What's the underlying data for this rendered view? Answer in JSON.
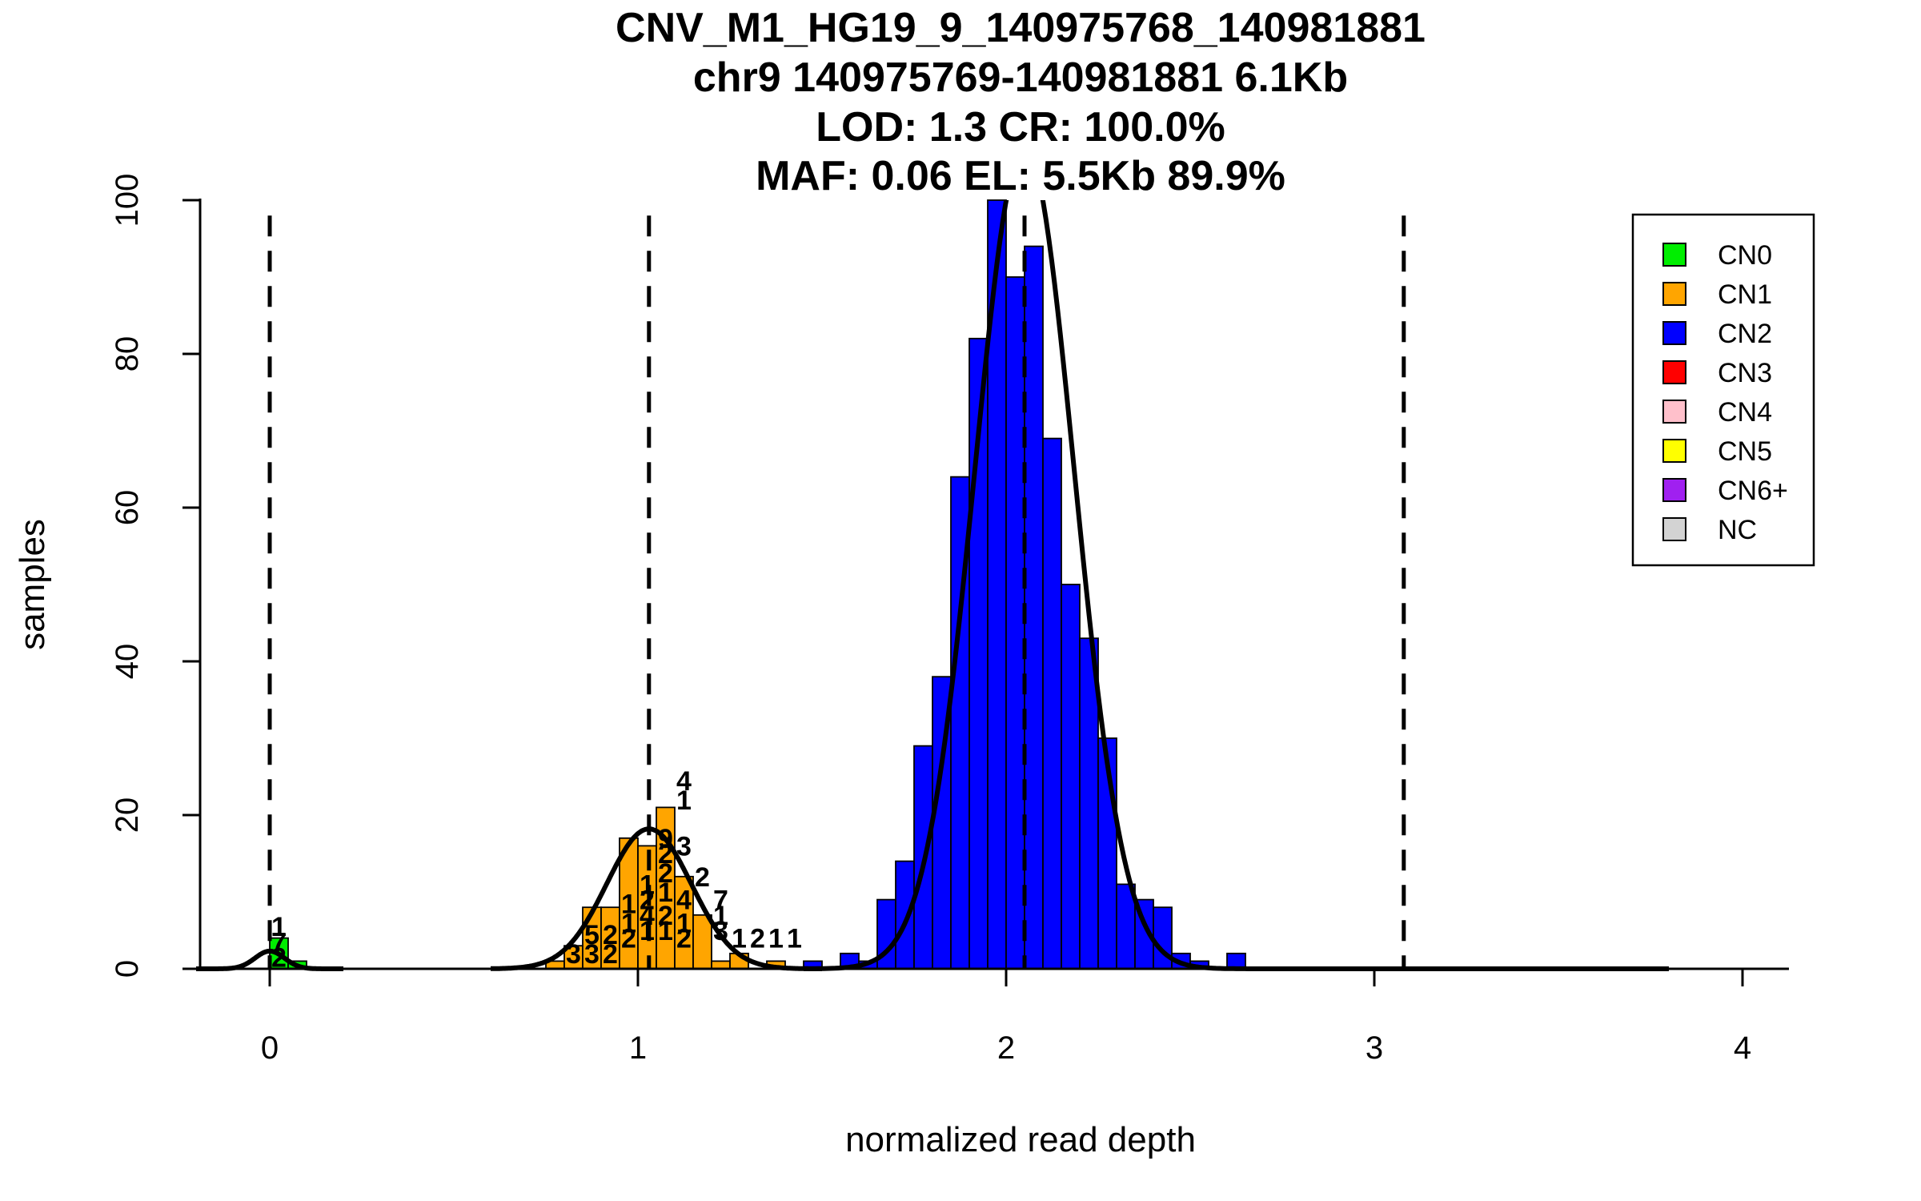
{
  "chart_data": {
    "type": "bar",
    "title_lines": [
      "CNV_M1_HG19_9_140975768_140981881",
      "chr9 140975769-140981881 6.1Kb",
      "LOD: 1.3 CR: 100.0%",
      "MAF: 0.06 EL: 5.5Kb 89.9%"
    ],
    "xlabel": "normalized read depth",
    "ylabel": "samples",
    "xlim": [
      -0.2,
      4.15
    ],
    "ylim": [
      0,
      100
    ],
    "x_ticks": [
      "0",
      "1",
      "2",
      "3",
      "4"
    ],
    "y_ticks": [
      "0",
      "20",
      "40",
      "60",
      "80",
      "100"
    ],
    "bin_width": 0.05,
    "legend": {
      "placement": "top-right",
      "entries": [
        {
          "label": "CN0",
          "color": "#00ee00"
        },
        {
          "label": "CN1",
          "color": "#ffa500"
        },
        {
          "label": "CN2",
          "color": "#0000ff"
        },
        {
          "label": "CN3",
          "color": "#ff0000"
        },
        {
          "label": "CN4",
          "color": "#ffc0cb"
        },
        {
          "label": "CN5",
          "color": "#ffff00"
        },
        {
          "label": "CN6+",
          "color": "#a020f0"
        },
        {
          "label": "NC",
          "color": "#d3d3d3"
        }
      ]
    },
    "dashed_lines_x": [
      0.0,
      1.03,
      2.05,
      3.08
    ],
    "series": [
      {
        "name": "CN0",
        "color": "#00ee00",
        "bars": [
          {
            "x": 0.05,
            "y": 4
          },
          {
            "x": 0.1,
            "y": 1
          }
        ]
      },
      {
        "name": "CN1",
        "color": "#ffa500",
        "bars": [
          {
            "x": 0.8,
            "y": 1
          },
          {
            "x": 0.85,
            "y": 3
          },
          {
            "x": 0.9,
            "y": 8
          },
          {
            "x": 0.95,
            "y": 8
          },
          {
            "x": 1.0,
            "y": 17
          },
          {
            "x": 1.05,
            "y": 16
          },
          {
            "x": 1.1,
            "y": 21
          },
          {
            "x": 1.15,
            "y": 12
          },
          {
            "x": 1.2,
            "y": 7
          },
          {
            "x": 1.25,
            "y": 1
          },
          {
            "x": 1.3,
            "y": 2
          },
          {
            "x": 1.4,
            "y": 1
          }
        ]
      },
      {
        "name": "CN2",
        "color": "#0000ff",
        "bars": [
          {
            "x": 1.5,
            "y": 1
          },
          {
            "x": 1.6,
            "y": 2
          },
          {
            "x": 1.65,
            "y": 1
          },
          {
            "x": 1.7,
            "y": 9
          },
          {
            "x": 1.75,
            "y": 14
          },
          {
            "x": 1.8,
            "y": 29
          },
          {
            "x": 1.85,
            "y": 38
          },
          {
            "x": 1.9,
            "y": 64
          },
          {
            "x": 1.95,
            "y": 82
          },
          {
            "x": 2.0,
            "y": 100
          },
          {
            "x": 2.05,
            "y": 90
          },
          {
            "x": 2.1,
            "y": 94
          },
          {
            "x": 2.15,
            "y": 69
          },
          {
            "x": 2.2,
            "y": 50
          },
          {
            "x": 2.25,
            "y": 43
          },
          {
            "x": 2.3,
            "y": 30
          },
          {
            "x": 2.35,
            "y": 11
          },
          {
            "x": 2.4,
            "y": 9
          },
          {
            "x": 2.45,
            "y": 8
          },
          {
            "x": 2.5,
            "y": 2
          },
          {
            "x": 2.55,
            "y": 1
          },
          {
            "x": 2.65,
            "y": 2
          }
        ]
      }
    ],
    "bar_labels": [
      {
        "x": 0.025,
        "y": 1.5,
        "text": "2"
      },
      {
        "x": 0.025,
        "y": 3.5,
        "text": "7"
      },
      {
        "x": 0.025,
        "y": 5.5,
        "text": "1"
      },
      {
        "x": 0.825,
        "y": 2,
        "text": "3"
      },
      {
        "x": 0.875,
        "y": 2,
        "text": "3"
      },
      {
        "x": 0.875,
        "y": 4.5,
        "text": "5"
      },
      {
        "x": 0.925,
        "y": 4.5,
        "text": "2"
      },
      {
        "x": 0.925,
        "y": 2,
        "text": "2"
      },
      {
        "x": 0.975,
        "y": 6,
        "text": "1"
      },
      {
        "x": 0.975,
        "y": 8.5,
        "text": "1"
      },
      {
        "x": 0.975,
        "y": 4,
        "text": "2"
      },
      {
        "x": 1.025,
        "y": 11,
        "text": "1"
      },
      {
        "x": 1.025,
        "y": 9,
        "text": "2"
      },
      {
        "x": 1.025,
        "y": 7,
        "text": "4"
      },
      {
        "x": 1.025,
        "y": 5,
        "text": "1"
      },
      {
        "x": 1.075,
        "y": 17,
        "text": "9"
      },
      {
        "x": 1.075,
        "y": 15,
        "text": "2"
      },
      {
        "x": 1.075,
        "y": 12.5,
        "text": "2"
      },
      {
        "x": 1.075,
        "y": 10,
        "text": "1"
      },
      {
        "x": 1.075,
        "y": 7,
        "text": "2"
      },
      {
        "x": 1.075,
        "y": 5,
        "text": "1"
      },
      {
        "x": 1.125,
        "y": 24.5,
        "text": "4"
      },
      {
        "x": 1.125,
        "y": 22,
        "text": "1"
      },
      {
        "x": 1.125,
        "y": 16,
        "text": "3"
      },
      {
        "x": 1.125,
        "y": 9,
        "text": "4"
      },
      {
        "x": 1.125,
        "y": 6,
        "text": "1"
      },
      {
        "x": 1.125,
        "y": 4,
        "text": "2"
      },
      {
        "x": 1.175,
        "y": 12,
        "text": "2"
      },
      {
        "x": 1.225,
        "y": 9,
        "text": "7"
      },
      {
        "x": 1.225,
        "y": 7,
        "text": "1"
      },
      {
        "x": 1.225,
        "y": 5,
        "text": "3"
      },
      {
        "x": 1.275,
        "y": 4,
        "text": "1"
      },
      {
        "x": 1.325,
        "y": 4,
        "text": "2"
      },
      {
        "x": 1.375,
        "y": 4,
        "text": "1"
      },
      {
        "x": 1.425,
        "y": 4,
        "text": "1"
      }
    ],
    "density_curves": [
      {
        "mu": 0.0,
        "sigma": 0.04,
        "peak": 2.3,
        "xmin": -0.2,
        "xmax": 0.2
      },
      {
        "mu": 1.03,
        "sigma": 0.115,
        "peak": 18.2,
        "xmin": 0.6,
        "xmax": 1.5
      },
      {
        "mu": 2.05,
        "sigma": 0.135,
        "peak": 107,
        "xmin": 1.45,
        "xmax": 3.8
      }
    ]
  }
}
